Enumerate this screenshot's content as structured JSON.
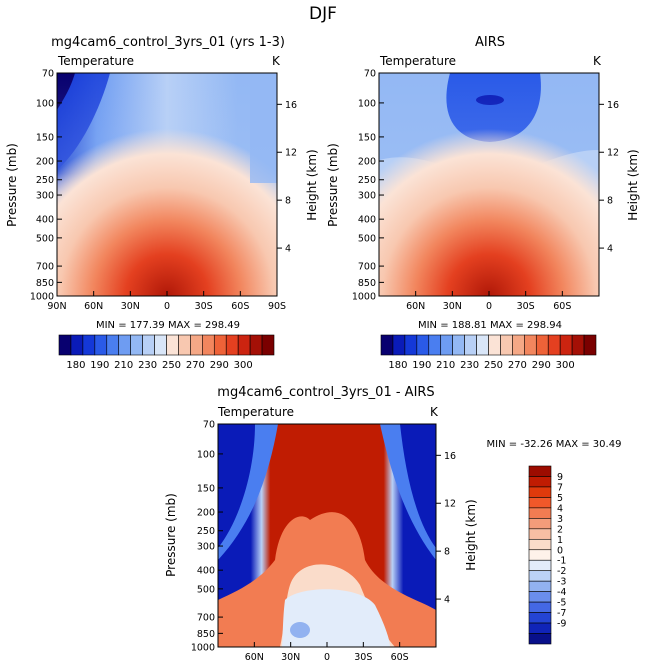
{
  "main_title": "DJF",
  "chart_data": [
    {
      "type": "heatmap",
      "title": "mg4cam6_control_3yrs_01 (yrs 1-3)",
      "variable": "Temperature",
      "units": "K",
      "ylabel": "Pressure (mb)",
      "ylabel_right": "Height (km)",
      "x_ticks": [
        "90N",
        "60N",
        "30N",
        "0",
        "30S",
        "60S",
        "90S"
      ],
      "y_ticks": [
        "70",
        "100",
        "150",
        "200",
        "250",
        "300",
        "400",
        "500",
        "700",
        "850",
        "1000"
      ],
      "height_ticks": [
        "16",
        "12",
        "8",
        "4"
      ],
      "stats": "MIN = 177.39   MAX = 298.49",
      "min": 177.39,
      "max": 298.49
    },
    {
      "type": "heatmap",
      "title": "AIRS",
      "variable": "Temperature",
      "units": "K",
      "ylabel": "Pressure (mb)",
      "ylabel_right": "Height (km)",
      "x_ticks": [
        "60N",
        "30N",
        "0",
        "30S",
        "60S"
      ],
      "y_ticks": [
        "70",
        "100",
        "150",
        "200",
        "250",
        "300",
        "400",
        "500",
        "700",
        "850",
        "1000"
      ],
      "height_ticks": [
        "16",
        "12",
        "8",
        "4"
      ],
      "stats": "MIN = 188.81   MAX = 298.94",
      "min": 188.81,
      "max": 298.94
    },
    {
      "type": "heatmap",
      "title": "mg4cam6_control_3yrs_01 - AIRS",
      "variable": "Temperature",
      "units": "K",
      "ylabel": "Pressure (mb)",
      "ylabel_right": "Height (km)",
      "x_ticks": [
        "60N",
        "30N",
        "0",
        "30S",
        "60S"
      ],
      "y_ticks": [
        "70",
        "100",
        "150",
        "200",
        "250",
        "300",
        "400",
        "500",
        "700",
        "850",
        "1000"
      ],
      "height_ticks": [
        "16",
        "12",
        "8",
        "4"
      ],
      "stats": "MIN = -32.26   MAX =  30.49",
      "min": -32.26,
      "max": 30.49
    }
  ],
  "colorbar_abs": {
    "labels": [
      "180",
      "190",
      "210",
      "230",
      "250",
      "270",
      "290",
      "300"
    ],
    "colors": [
      "#08006f",
      "#0a1bb8",
      "#1438d8",
      "#2a5ae8",
      "#4a7ef0",
      "#6e9cf2",
      "#93b8f4",
      "#b8d0f6",
      "#d9e6f8",
      "#fbe3d6",
      "#f8c8b0",
      "#f5a886",
      "#f2865e",
      "#ee6238",
      "#e44020",
      "#cc2410",
      "#a41006",
      "#7a0000"
    ]
  },
  "colorbar_diff": {
    "labels": [
      "9",
      "7",
      "5",
      "4",
      "3",
      "2",
      "1",
      "0",
      "-1",
      "-2",
      "-3",
      "-4",
      "-5",
      "-7",
      "-9"
    ],
    "colors": [
      "#9c0c00",
      "#c01c02",
      "#e03a0c",
      "#f0582a",
      "#f27c52",
      "#f49c7a",
      "#f7bea4",
      "#fadcca",
      "#fef2ea",
      "#e2ecfa",
      "#bcd2f6",
      "#92b2f0",
      "#6a8eec",
      "#4468e4",
      "#2444d4",
      "#1024b8",
      "#08108a"
    ]
  }
}
